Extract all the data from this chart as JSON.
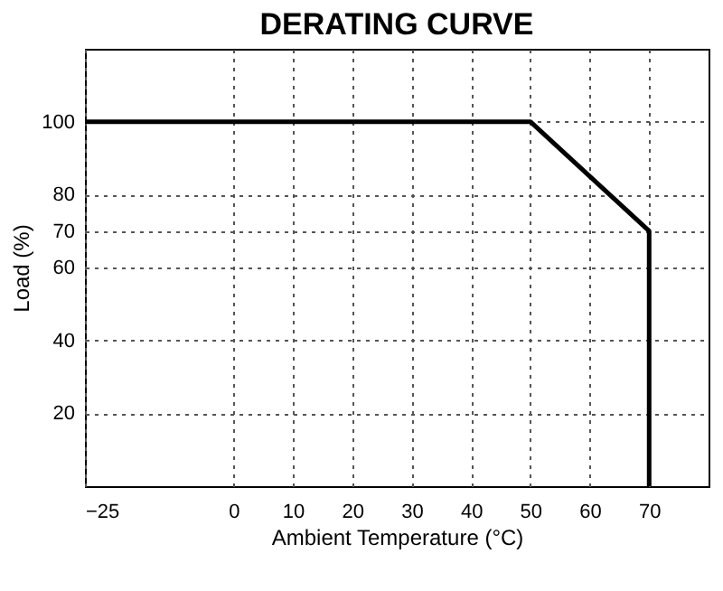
{
  "chart_data": {
    "type": "line",
    "title": "DERATING CURVE",
    "xlabel": "Ambient Temperature (°C)",
    "ylabel": "Load (%)",
    "x": [
      -25,
      50,
      70,
      70
    ],
    "series": [
      {
        "color": "#000000",
        "values": [
          100,
          100,
          70,
          0
        ]
      }
    ],
    "xlim": [
      -25,
      80
    ],
    "xticks": [
      -25,
      0,
      10,
      20,
      30,
      40,
      50,
      60,
      70
    ],
    "ylim": [
      0,
      120
    ],
    "yticks": [
      20,
      40,
      60,
      70,
      80,
      100
    ],
    "grid": true,
    "line_style": "solid",
    "marker": "none",
    "legend": false
  }
}
